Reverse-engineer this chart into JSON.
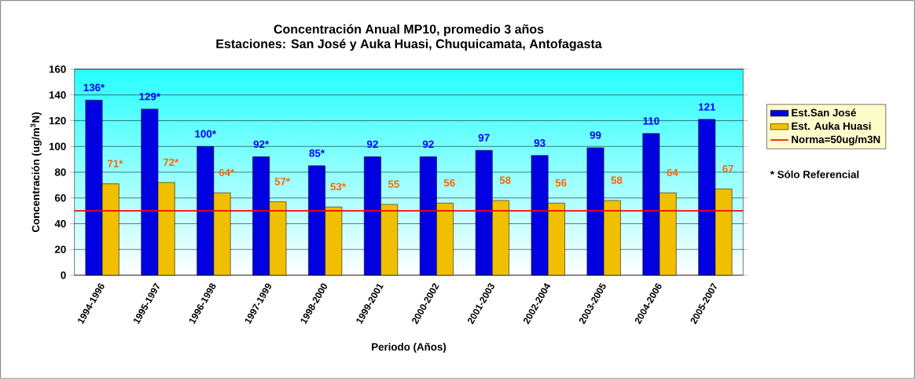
{
  "chart_data": {
    "type": "bar",
    "title": "Concentración Anual MP10, promedio 3 años",
    "subtitle": "Estaciones: San José y Auka Huasi, Chuquicamata, Antofagasta",
    "xlabel": "Periodo (Años)",
    "ylabel": "Concentración (ug/m$^{3}$N)",
    "categories": [
      "1994-1996",
      "1995-1997",
      "1996-1998",
      "1997-1999",
      "1998-2000",
      "1999-2001",
      "2000-2002",
      "2001-2003",
      "2002-2004",
      "2003-2005",
      "2004-2006",
      "2005-2007"
    ],
    "series": [
      {
        "name": "Est.San José",
        "color": "#0000e0",
        "values": [
          136,
          129,
          100,
          92,
          85,
          92,
          92,
          97,
          93,
          99,
          110,
          121
        ],
        "value_labels": [
          "136*",
          "129*",
          "100*",
          "92*",
          "85*",
          "92",
          "92",
          "97",
          "93",
          "99",
          "110",
          "121"
        ]
      },
      {
        "name": "Est. Auka Huasi",
        "color": "#f0c000",
        "values": [
          71,
          72,
          64,
          57,
          53,
          55,
          56,
          58,
          56,
          58,
          64,
          67
        ],
        "value_labels": [
          "71*",
          "72*",
          "64*",
          "57*",
          "53*",
          "55",
          "56",
          "58",
          "56",
          "58",
          "64",
          "67"
        ]
      }
    ],
    "ref_lines": [
      {
        "axis": "y",
        "value": 50,
        "label": "Norma=50ug/m3N",
        "color": "#ff0000"
      }
    ],
    "annotations": [
      "* Sólo Referencial"
    ],
    "ylim": [
      0,
      160
    ],
    "yticks": [
      0,
      20,
      40,
      60,
      80,
      100,
      120,
      140,
      160
    ],
    "grid": "y",
    "legend": "right"
  }
}
